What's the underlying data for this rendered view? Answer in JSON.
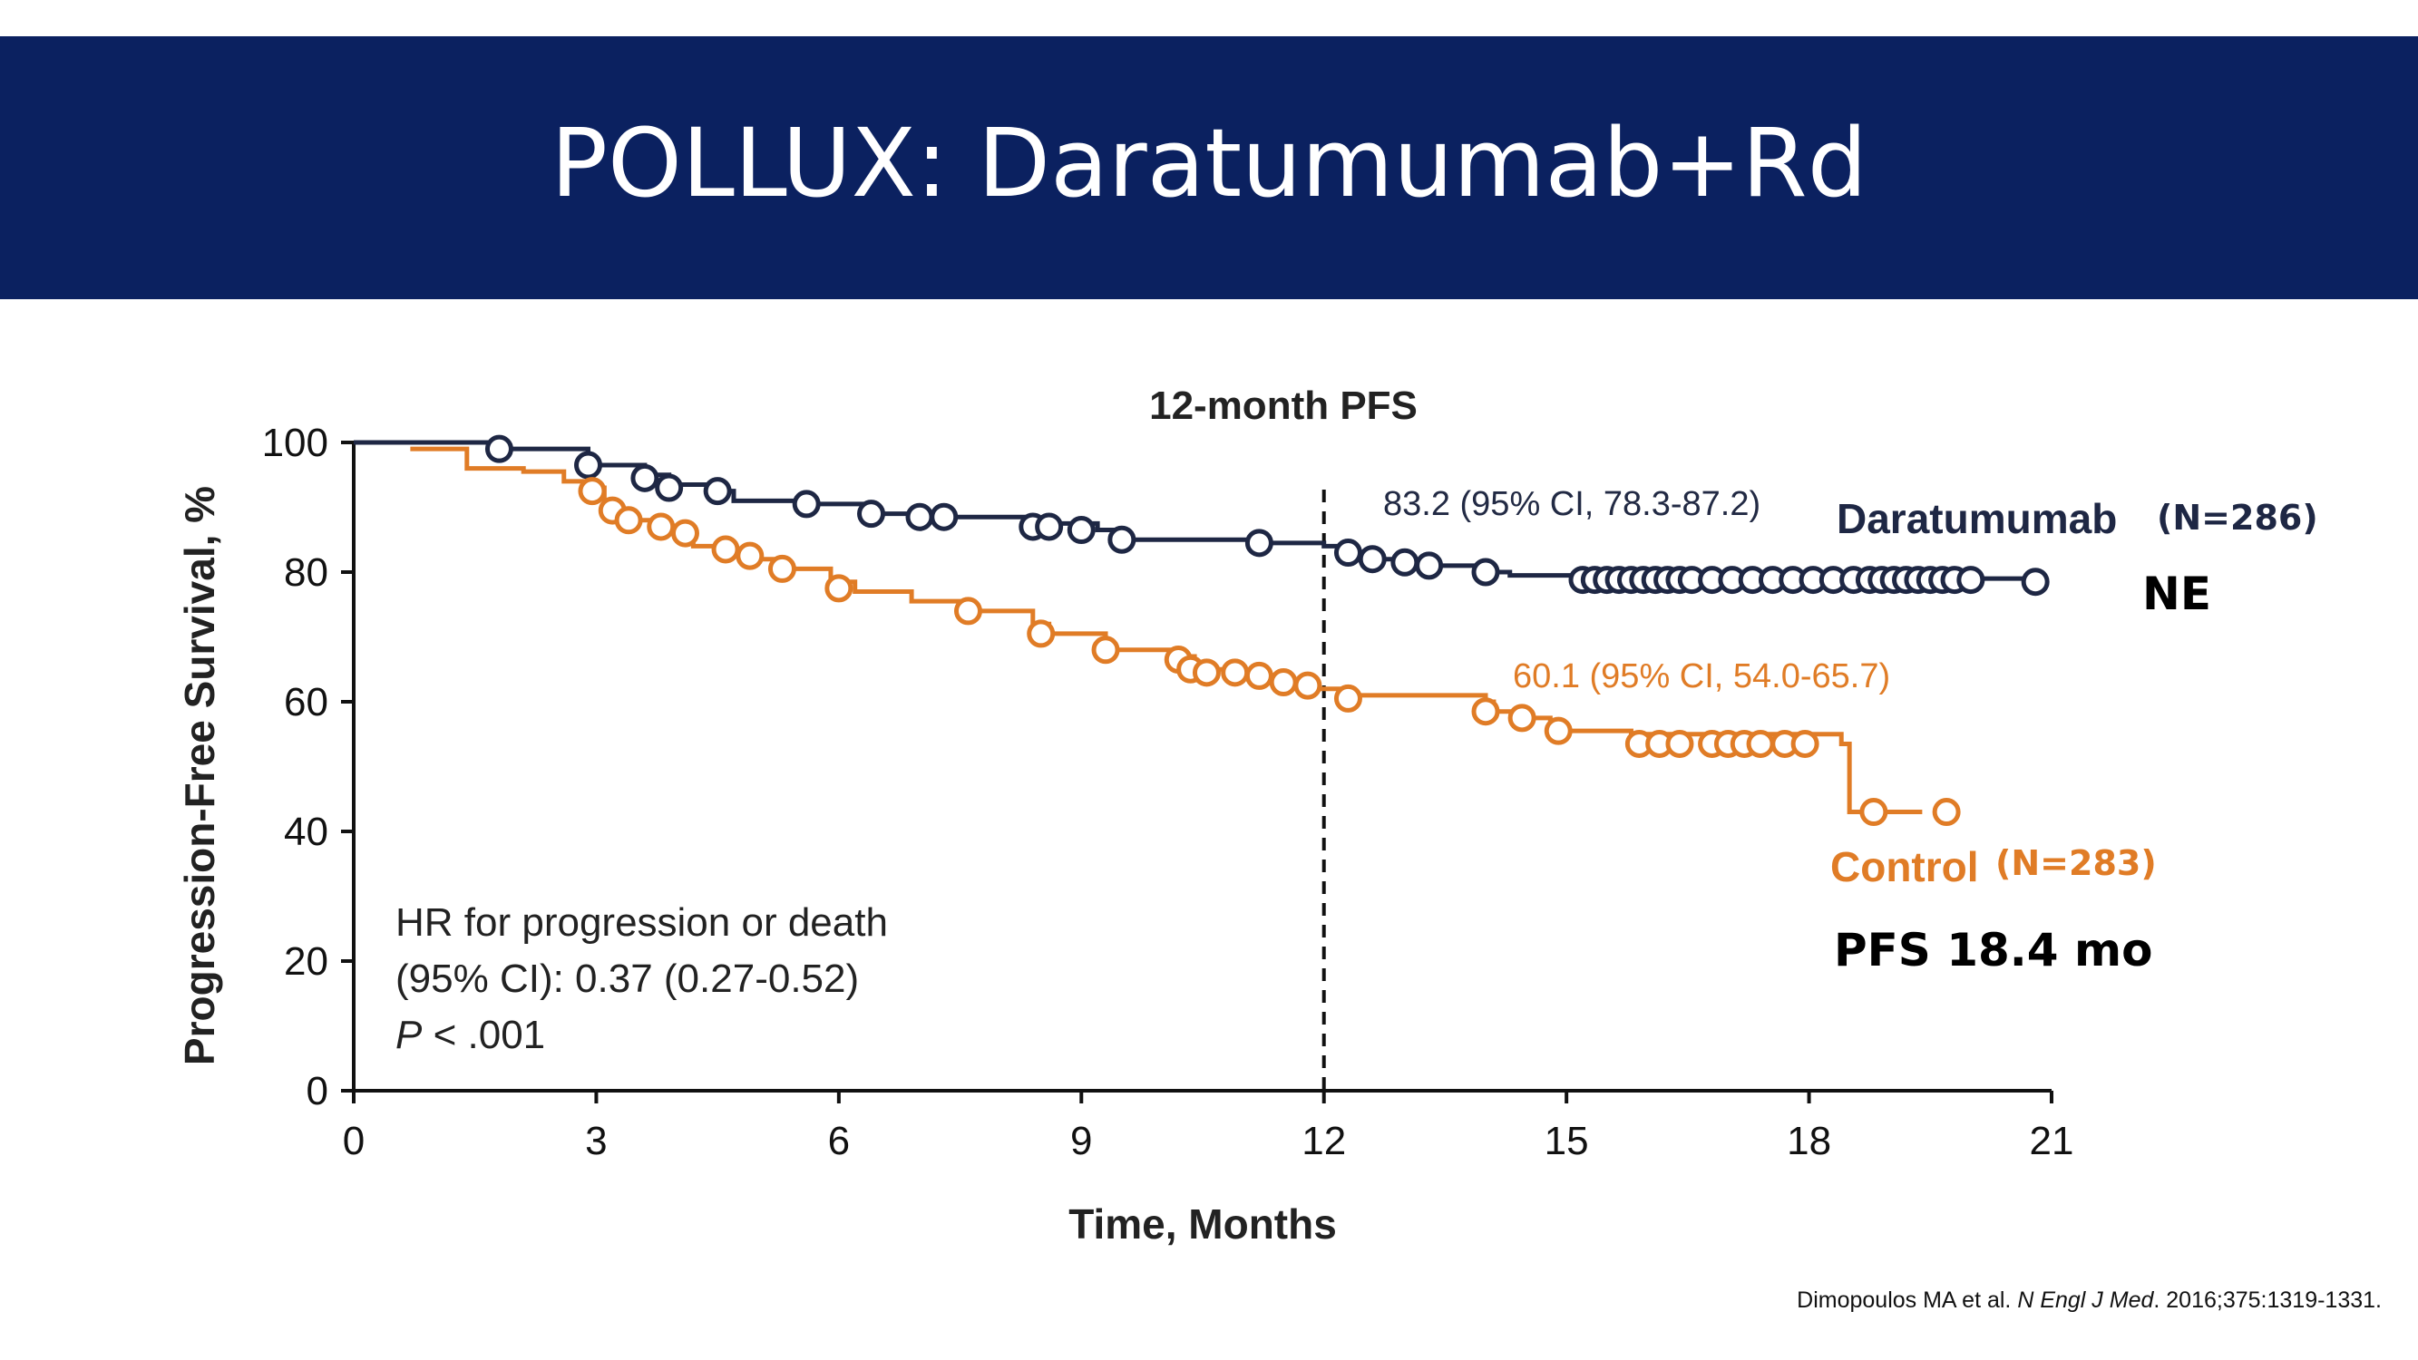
{
  "slide": {
    "title": "POLLUX: Daratumumab+Rd",
    "citation_authors": "Dimopoulos MA et al. ",
    "citation_journal": "N Engl J Med",
    "citation_rest": ". 2016;375:1319-1331."
  },
  "chart_data": {
    "type": "line",
    "title": "12-month PFS",
    "xlabel": "Time, Months",
    "ylabel": "Progression-Free Survival, %",
    "xlim": [
      0,
      21
    ],
    "ylim": [
      0,
      100
    ],
    "xticks": [
      0,
      3,
      6,
      9,
      12,
      15,
      18,
      21
    ],
    "yticks": [
      0,
      20,
      40,
      60,
      80,
      100
    ],
    "reference_line_x": 12,
    "colors": {
      "daratumumab": "#1e2744",
      "control": "#e07c26"
    },
    "series": [
      {
        "name": "Daratumumab",
        "n_label": "(N=286)",
        "median_label": "NE",
        "steps": [
          [
            0,
            100
          ],
          [
            1.8,
            99
          ],
          [
            2.9,
            96.5
          ],
          [
            3.6,
            95
          ],
          [
            3.9,
            93.5
          ],
          [
            4.5,
            92.5
          ],
          [
            4.7,
            91
          ],
          [
            5.6,
            90.5
          ],
          [
            6.4,
            89
          ],
          [
            7.0,
            88.5
          ],
          [
            8.4,
            87.5
          ],
          [
            9.2,
            86.5
          ],
          [
            9.5,
            85
          ],
          [
            11.2,
            84.5
          ],
          [
            12.0,
            84
          ],
          [
            12.3,
            83
          ],
          [
            12.6,
            82
          ],
          [
            13,
            81.5
          ],
          [
            13.3,
            81
          ],
          [
            14.0,
            80
          ],
          [
            14.3,
            79.5
          ],
          [
            15.2,
            79
          ],
          [
            20.8,
            78.5
          ]
        ],
        "censors": [
          [
            1.8,
            99
          ],
          [
            2.9,
            96.5
          ],
          [
            3.6,
            94.5
          ],
          [
            3.9,
            93
          ],
          [
            4.5,
            92.5
          ],
          [
            5.6,
            90.5
          ],
          [
            6.4,
            89
          ],
          [
            7.0,
            88.5
          ],
          [
            7.3,
            88.5
          ],
          [
            8.4,
            87
          ],
          [
            8.6,
            87
          ],
          [
            9.0,
            86.5
          ],
          [
            9.5,
            85
          ],
          [
            11.2,
            84.5
          ],
          [
            12.3,
            83
          ],
          [
            12.6,
            82
          ],
          [
            13.0,
            81.5
          ],
          [
            13.3,
            81
          ],
          [
            14.0,
            80
          ],
          [
            15.2,
            78.8
          ],
          [
            15.35,
            78.8
          ],
          [
            15.5,
            78.8
          ],
          [
            15.65,
            78.8
          ],
          [
            15.8,
            78.8
          ],
          [
            15.95,
            78.8
          ],
          [
            16.1,
            78.8
          ],
          [
            16.25,
            78.8
          ],
          [
            16.4,
            78.8
          ],
          [
            16.55,
            78.8
          ],
          [
            16.8,
            78.8
          ],
          [
            17.05,
            78.8
          ],
          [
            17.3,
            78.8
          ],
          [
            17.55,
            78.8
          ],
          [
            17.8,
            78.8
          ],
          [
            18.05,
            78.8
          ],
          [
            18.3,
            78.8
          ],
          [
            18.55,
            78.8
          ],
          [
            18.75,
            78.8
          ],
          [
            18.9,
            78.8
          ],
          [
            19.05,
            78.8
          ],
          [
            19.2,
            78.8
          ],
          [
            19.35,
            78.8
          ],
          [
            19.5,
            78.8
          ],
          [
            19.65,
            78.8
          ],
          [
            19.8,
            78.8
          ],
          [
            20.0,
            78.8
          ],
          [
            20.8,
            78.5
          ]
        ]
      },
      {
        "name": "Control",
        "n_label": "(N=283)",
        "median_label": "PFS 18.4 mo",
        "steps": [
          [
            0.7,
            99
          ],
          [
            1.4,
            96
          ],
          [
            2.1,
            95.5
          ],
          [
            2.6,
            94
          ],
          [
            2.95,
            93
          ],
          [
            3.1,
            90
          ],
          [
            3.3,
            88
          ],
          [
            3.7,
            87
          ],
          [
            4.0,
            86
          ],
          [
            4.2,
            84
          ],
          [
            4.6,
            83
          ],
          [
            4.9,
            82
          ],
          [
            5.3,
            80.5
          ],
          [
            5.9,
            78.5
          ],
          [
            6.2,
            77
          ],
          [
            6.9,
            75.5
          ],
          [
            7.5,
            74
          ],
          [
            8.4,
            72
          ],
          [
            8.6,
            70.5
          ],
          [
            9.3,
            68
          ],
          [
            10.2,
            67
          ],
          [
            10.4,
            65
          ],
          [
            11,
            64
          ],
          [
            11.5,
            63
          ],
          [
            11.9,
            62
          ],
          [
            12.2,
            61
          ],
          [
            14.0,
            60
          ],
          [
            14.1,
            58.5
          ],
          [
            14.4,
            57.5
          ],
          [
            14.8,
            56
          ],
          [
            14.9,
            55.5
          ],
          [
            15.8,
            55
          ],
          [
            18.4,
            53.5
          ],
          [
            18.5,
            43
          ],
          [
            19.4,
            43
          ]
        ],
        "censors": [
          [
            2.95,
            92.5
          ],
          [
            3.2,
            89.5
          ],
          [
            3.4,
            88
          ],
          [
            3.8,
            87
          ],
          [
            4.1,
            86
          ],
          [
            4.6,
            83.5
          ],
          [
            4.9,
            82.5
          ],
          [
            5.3,
            80.5
          ],
          [
            6.0,
            77.5
          ],
          [
            7.6,
            74
          ],
          [
            8.5,
            70.5
          ],
          [
            9.3,
            68
          ],
          [
            10.2,
            66.5
          ],
          [
            10.35,
            65
          ],
          [
            10.55,
            64.5
          ],
          [
            10.9,
            64.5
          ],
          [
            11.2,
            64
          ],
          [
            11.5,
            63
          ],
          [
            11.8,
            62.5
          ],
          [
            12.3,
            60.5
          ],
          [
            14.0,
            58.5
          ],
          [
            14.45,
            57.5
          ],
          [
            14.9,
            55.5
          ],
          [
            15.9,
            53.5
          ],
          [
            16.15,
            53.5
          ],
          [
            16.4,
            53.5
          ],
          [
            16.8,
            53.5
          ],
          [
            17.0,
            53.5
          ],
          [
            17.2,
            53.5
          ],
          [
            17.4,
            53.5
          ],
          [
            17.7,
            53.5
          ],
          [
            17.95,
            53.5
          ],
          [
            18.8,
            43
          ],
          [
            19.7,
            43
          ]
        ]
      }
    ],
    "annotations": [
      {
        "series": "Daratumumab",
        "text": "83.2 (95% CI, 78.3-87.2)"
      },
      {
        "series": "Control",
        "text": "60.1 (95% CI, 54.0-65.7)"
      }
    ],
    "stats_text": {
      "line1": "HR for progression or death",
      "line2": "(95% CI): 0.37 (0.27-0.52)",
      "line3_italic": "P",
      "line3_rest": " < .001"
    }
  }
}
